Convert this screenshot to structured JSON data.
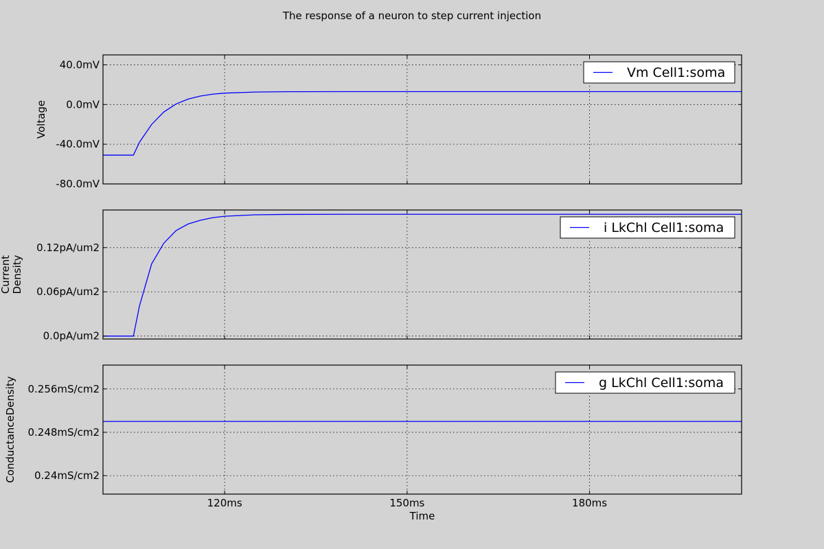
{
  "title": "The response of a neuron to step current injection",
  "xlabel": "Time",
  "colors": {
    "line": "#0000ff",
    "background": "#d3d3d3"
  },
  "chart_data": [
    {
      "type": "line",
      "ylabel": [
        "Voltage"
      ],
      "legend": "Vm Cell1:soma",
      "legend_position": "top-right",
      "grid": true,
      "xlim": [
        100,
        205
      ],
      "ylim": [
        -80,
        50
      ],
      "yticks": [
        {
          "value": -80,
          "label": "-80.0mV"
        },
        {
          "value": -40,
          "label": "-40.0mV"
        },
        {
          "value": 0,
          "label": "0.0mV"
        },
        {
          "value": 40,
          "label": "40.0mV"
        }
      ],
      "series": [
        {
          "name": "Vm Cell1:soma",
          "x": [
            100,
            105,
            106,
            108,
            110,
            112,
            114,
            116,
            118,
            120,
            125,
            130,
            140,
            205
          ],
          "y": [
            -51,
            -51,
            -38,
            -20,
            -7.5,
            0.5,
            5.5,
            8.5,
            10.4,
            11.5,
            12.6,
            12.9,
            13,
            13
          ]
        }
      ]
    },
    {
      "type": "line",
      "ylabel": [
        "Current",
        "Density"
      ],
      "legend": "i LkChl Cell1:soma",
      "legend_position": "top-right",
      "grid": true,
      "xlim": [
        100,
        205
      ],
      "ylim": [
        -0.004,
        0.171
      ],
      "yticks": [
        {
          "value": 0.0,
          "label": "0.0pA/um2"
        },
        {
          "value": 0.06,
          "label": "0.06pA/um2"
        },
        {
          "value": 0.12,
          "label": "0.12pA/um2"
        }
      ],
      "series": [
        {
          "name": "i LkChl Cell1:soma",
          "x": [
            100,
            105,
            106,
            108,
            110,
            112,
            114,
            116,
            118,
            120,
            125,
            130,
            140,
            205
          ],
          "y": [
            0.0,
            0.0,
            0.041,
            0.098,
            0.126,
            0.143,
            0.152,
            0.157,
            0.1605,
            0.1625,
            0.1645,
            0.165,
            0.1652,
            0.1652
          ]
        }
      ]
    },
    {
      "type": "line",
      "ylabel": [
        "ConductanceDensity"
      ],
      "legend": "g LkChl Cell1:soma",
      "legend_position": "top-right",
      "grid": true,
      "xlim": [
        100,
        205
      ],
      "ylim": [
        0.2366,
        0.2604
      ],
      "yticks": [
        {
          "value": 0.24,
          "label": "0.24mS/cm2"
        },
        {
          "value": 0.248,
          "label": "0.248mS/cm2"
        },
        {
          "value": 0.256,
          "label": "0.256mS/cm2"
        }
      ],
      "series": [
        {
          "name": "g LkChl Cell1:soma",
          "x": [
            100,
            205
          ],
          "y": [
            0.25,
            0.25
          ]
        }
      ]
    }
  ],
  "xticks": [
    {
      "value": 120,
      "label": "120ms"
    },
    {
      "value": 150,
      "label": "150ms"
    },
    {
      "value": 180,
      "label": "180ms"
    }
  ]
}
